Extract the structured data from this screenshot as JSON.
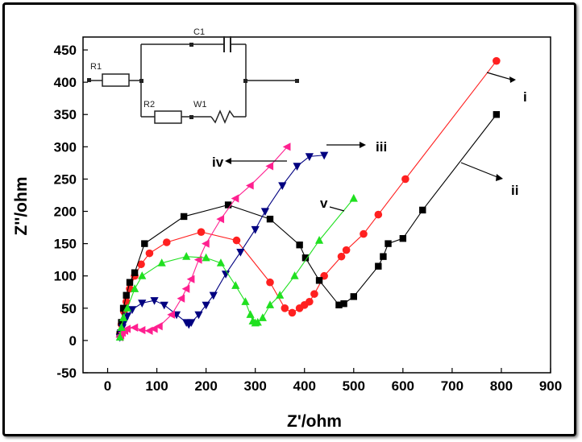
{
  "chart_data": {
    "type": "scatter",
    "title": "",
    "xlabel": "Z'/ohm",
    "ylabel": "Z''/ohm",
    "xlim": [
      -50,
      900
    ],
    "ylim": [
      -50,
      470
    ],
    "xticks": [
      0,
      100,
      200,
      300,
      400,
      500,
      600,
      700,
      800,
      900
    ],
    "yticks": [
      -50,
      0,
      50,
      100,
      150,
      200,
      250,
      300,
      350,
      400,
      450
    ],
    "series": [
      {
        "name": "i",
        "color": "#ff2020",
        "marker": "circle",
        "x": [
          25,
          28,
          33,
          38,
          45,
          55,
          68,
          85,
          120,
          190,
          262,
          330,
          360,
          375,
          390,
          400,
          410,
          420,
          440,
          475,
          485,
          520,
          550,
          605,
          790
        ],
        "y": [
          10,
          25,
          45,
          60,
          80,
          100,
          118,
          135,
          152,
          168,
          155,
          90,
          50,
          43,
          50,
          55,
          60,
          72,
          100,
          130,
          140,
          165,
          195,
          250,
          433
        ]
      },
      {
        "name": "ii",
        "color": "#000000",
        "marker": "square",
        "x": [
          25,
          28,
          32,
          38,
          45,
          55,
          75,
          155,
          245,
          330,
          390,
          402,
          430,
          470,
          480,
          500,
          550,
          560,
          570,
          600,
          640,
          790
        ],
        "y": [
          10,
          28,
          50,
          70,
          90,
          105,
          150,
          192,
          210,
          188,
          148,
          128,
          93,
          55,
          57,
          68,
          115,
          130,
          150,
          158,
          202,
          350
        ]
      },
      {
        "name": "iii",
        "color": "#000080",
        "marker": "tri-down",
        "x": [
          25,
          27,
          30,
          35,
          40,
          50,
          70,
          95,
          115,
          140,
          160,
          165,
          170,
          185,
          200,
          215,
          240,
          270,
          300,
          320,
          355,
          385,
          410,
          440
        ],
        "y": [
          5,
          12,
          20,
          30,
          38,
          48,
          58,
          62,
          55,
          40,
          28,
          25,
          28,
          40,
          55,
          70,
          103,
          137,
          172,
          200,
          240,
          270,
          285,
          287
        ]
      },
      {
        "name": "iv",
        "color": "#ff2090",
        "marker": "tri-left",
        "x": [
          25,
          27,
          30,
          35,
          40,
          55,
          70,
          85,
          95,
          105,
          130,
          150,
          160,
          170,
          185,
          200,
          230,
          260,
          290,
          330,
          365
        ],
        "y": [
          5,
          8,
          12,
          15,
          18,
          20,
          16,
          15,
          18,
          22,
          40,
          65,
          80,
          95,
          125,
          150,
          188,
          220,
          240,
          270,
          300
        ]
      },
      {
        "name": "v",
        "color": "#20e020",
        "marker": "tri-up",
        "x": [
          25,
          28,
          32,
          40,
          55,
          70,
          110,
          160,
          200,
          230,
          260,
          280,
          290,
          295,
          300,
          305,
          315,
          330,
          350,
          380,
          430,
          500
        ],
        "y": [
          5,
          20,
          35,
          50,
          80,
          100,
          120,
          130,
          128,
          120,
          85,
          60,
          40,
          30,
          27,
          28,
          35,
          55,
          70,
          100,
          155,
          220
        ]
      }
    ],
    "annotations": [
      {
        "label": "i"
      },
      {
        "label": "ii"
      },
      {
        "label": "iii"
      },
      {
        "label": "iv"
      },
      {
        "label": "v"
      }
    ],
    "inset_circuit": {
      "labels": [
        "R1",
        "R2",
        "C1",
        "W1"
      ]
    }
  }
}
